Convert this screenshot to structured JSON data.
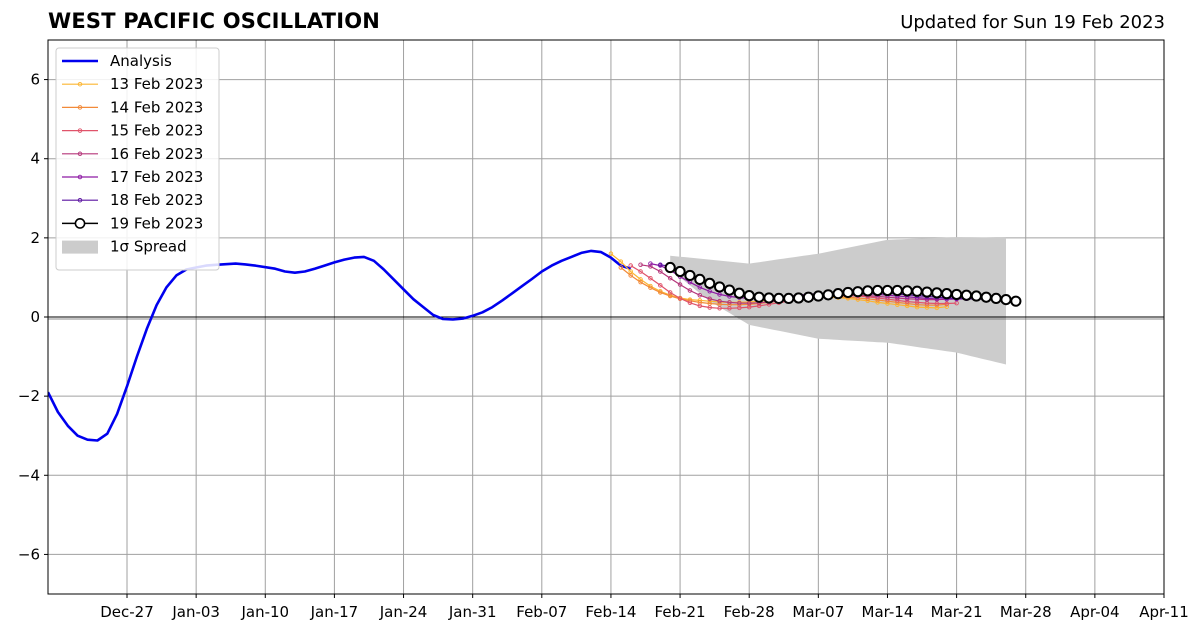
{
  "title": "WEST PACIFIC OSCILLATION",
  "subtitle": "Updated for Sun 19 Feb 2023",
  "chart_data": {
    "type": "line",
    "x_unit": "date",
    "x_range": [
      "2022-12-19",
      "2023-04-11"
    ],
    "ylim": [
      -7,
      7
    ],
    "yticks": [
      -6,
      -4,
      -2,
      0,
      2,
      4,
      6
    ],
    "ytick_labels": [
      "−6",
      "−4",
      "−2",
      "0",
      "2",
      "4",
      "6"
    ],
    "xticks": [
      "2022-12-27",
      "2023-01-03",
      "2023-01-10",
      "2023-01-17",
      "2023-01-24",
      "2023-01-31",
      "2023-02-07",
      "2023-02-14",
      "2023-02-21",
      "2023-02-28",
      "2023-03-07",
      "2023-03-14",
      "2023-03-21",
      "2023-03-28",
      "2023-04-04",
      "2023-04-11"
    ],
    "xtick_labels": [
      "Dec-27",
      "Jan-03",
      "Jan-10",
      "Jan-17",
      "Jan-24",
      "Jan-31",
      "Feb-07",
      "Feb-14",
      "Feb-21",
      "Feb-28",
      "Mar-07",
      "Mar-14",
      "Mar-21",
      "Mar-28",
      "Apr-04",
      "Apr-11"
    ],
    "grid": true,
    "legend_position": "top-left",
    "series": [
      {
        "name": "Analysis",
        "color": "#0000ee",
        "style": "thick-line",
        "x": [
          "2022-12-19",
          "2022-12-20",
          "2022-12-21",
          "2022-12-22",
          "2022-12-23",
          "2022-12-24",
          "2022-12-25",
          "2022-12-26",
          "2022-12-27",
          "2022-12-28",
          "2022-12-29",
          "2022-12-30",
          "2022-12-31",
          "2023-01-01",
          "2023-01-02",
          "2023-01-03",
          "2023-01-04",
          "2023-01-05",
          "2023-01-07",
          "2023-01-08",
          "2023-01-09",
          "2023-01-11",
          "2023-01-12",
          "2023-01-13",
          "2023-01-14",
          "2023-01-15",
          "2023-01-16",
          "2023-01-17",
          "2023-01-18",
          "2023-01-19",
          "2023-01-20",
          "2023-01-21",
          "2023-01-22",
          "2023-01-23",
          "2023-01-24",
          "2023-01-25",
          "2023-01-26",
          "2023-01-27",
          "2023-01-28",
          "2023-01-29",
          "2023-01-30",
          "2023-01-31",
          "2023-02-01",
          "2023-02-02",
          "2023-02-03",
          "2023-02-04",
          "2023-02-05",
          "2023-02-06",
          "2023-02-07",
          "2023-02-08",
          "2023-02-09",
          "2023-02-10",
          "2023-02-11",
          "2023-02-12",
          "2023-02-13",
          "2023-02-14",
          "2023-02-15",
          "2023-02-16"
        ],
        "y": [
          -1.9,
          -2.4,
          -2.75,
          -3.0,
          -3.1,
          -3.12,
          -2.95,
          -2.45,
          -1.75,
          -1.0,
          -0.3,
          0.3,
          0.75,
          1.05,
          1.2,
          1.25,
          1.3,
          1.32,
          1.35,
          1.33,
          1.3,
          1.22,
          1.15,
          1.12,
          1.15,
          1.22,
          1.3,
          1.38,
          1.45,
          1.5,
          1.52,
          1.42,
          1.2,
          0.95,
          0.7,
          0.45,
          0.25,
          0.05,
          -0.05,
          -0.06,
          -0.04,
          0.03,
          0.12,
          0.25,
          0.42,
          0.6,
          0.78,
          0.96,
          1.15,
          1.3,
          1.42,
          1.52,
          1.62,
          1.67,
          1.64,
          1.5,
          1.3,
          1.22
        ]
      },
      {
        "name": "13 Feb 2023",
        "color": "#fcb531",
        "style": "small-markers",
        "start": "2023-02-14",
        "y": [
          1.6,
          1.4,
          1.15,
          0.95,
          0.78,
          0.65,
          0.55,
          0.48,
          0.44,
          0.42,
          0.4,
          0.38,
          0.37,
          0.37,
          0.38,
          0.4,
          0.42,
          0.45,
          0.47,
          0.49,
          0.5,
          0.5,
          0.5,
          0.49,
          0.47,
          0.44,
          0.41,
          0.37,
          0.34,
          0.31,
          0.28,
          0.25,
          0.24,
          0.23,
          0.26
        ]
      },
      {
        "name": "14 Feb 2023",
        "color": "#f28a39",
        "style": "small-markers",
        "start": "2023-02-15",
        "y": [
          1.25,
          1.05,
          0.88,
          0.74,
          0.62,
          0.53,
          0.46,
          0.41,
          0.37,
          0.34,
          0.32,
          0.31,
          0.31,
          0.32,
          0.34,
          0.37,
          0.4,
          0.43,
          0.46,
          0.49,
          0.5,
          0.51,
          0.51,
          0.5,
          0.48,
          0.46,
          0.43,
          0.4,
          0.37,
          0.34,
          0.31,
          0.3,
          0.3,
          0.32
        ]
      },
      {
        "name": "15 Feb 2023",
        "color": "#e0536a",
        "style": "small-markers",
        "start": "2023-02-16",
        "y": [
          1.3,
          1.15,
          0.98,
          0.8,
          0.62,
          0.47,
          0.36,
          0.28,
          0.24,
          0.22,
          0.22,
          0.23,
          0.25,
          0.28,
          0.32,
          0.36,
          0.4,
          0.44,
          0.48,
          0.51,
          0.53,
          0.54,
          0.54,
          0.53,
          0.51,
          0.48,
          0.45,
          0.42,
          0.39,
          0.37,
          0.35,
          0.34,
          0.34,
          0.35
        ]
      },
      {
        "name": "16 Feb 2023",
        "color": "#b5367a",
        "style": "small-markers",
        "start": "2023-02-17",
        "y": [
          1.32,
          1.28,
          1.15,
          0.98,
          0.82,
          0.67,
          0.55,
          0.46,
          0.4,
          0.37,
          0.35,
          0.35,
          0.36,
          0.38,
          0.41,
          0.44,
          0.47,
          0.5,
          0.53,
          0.55,
          0.56,
          0.56,
          0.55,
          0.54,
          0.52,
          0.5,
          0.48,
          0.46,
          0.45,
          0.44,
          0.44,
          0.45,
          0.46,
          0.48
        ]
      },
      {
        "name": "17 Feb 2023",
        "color": "#8e1aa5",
        "style": "small-markers",
        "start": "2023-02-18",
        "y": [
          1.35,
          1.3,
          1.18,
          1.02,
          0.88,
          0.75,
          0.65,
          0.57,
          0.52,
          0.49,
          0.47,
          0.47,
          0.48,
          0.5,
          0.52,
          0.55,
          0.57,
          0.59,
          0.6,
          0.61,
          0.61,
          0.6,
          0.59,
          0.57,
          0.55,
          0.53,
          0.51,
          0.49,
          0.47,
          0.46,
          0.45,
          0.45,
          0.46,
          0.47
        ]
      },
      {
        "name": "18 Feb 2023",
        "color": "#5a12a0",
        "style": "small-markers",
        "start": "2023-02-19",
        "y": [
          1.32,
          1.28,
          1.18,
          1.05,
          0.93,
          0.82,
          0.72,
          0.64,
          0.58,
          0.54,
          0.51,
          0.5,
          0.5,
          0.51,
          0.52,
          0.54,
          0.56,
          0.58,
          0.6,
          0.61,
          0.62,
          0.62,
          0.61,
          0.6,
          0.58,
          0.56,
          0.54,
          0.52,
          0.5,
          0.48,
          0.47,
          0.46,
          0.45,
          0.45
        ]
      },
      {
        "name": "19 Feb 2023",
        "color": "#000000",
        "style": "large-open-markers",
        "start": "2023-02-20",
        "y": [
          1.25,
          1.15,
          1.05,
          0.95,
          0.85,
          0.76,
          0.68,
          0.6,
          0.54,
          0.5,
          0.48,
          0.47,
          0.47,
          0.48,
          0.5,
          0.53,
          0.56,
          0.59,
          0.62,
          0.64,
          0.66,
          0.67,
          0.67,
          0.67,
          0.66,
          0.65,
          0.63,
          0.61,
          0.59,
          0.57,
          0.55,
          0.53,
          0.5,
          0.47,
          0.44,
          0.4
        ]
      }
    ],
    "spread": {
      "name": "1σ Spread",
      "color": "#cccccc",
      "start": "2023-02-20",
      "end": "2023-03-26",
      "upper_at": {
        "2023-02-20": 1.55,
        "2023-02-28": 1.35,
        "2023-03-07": 1.6,
        "2023-03-14": 1.95,
        "2023-03-21": 2.02,
        "2023-03-26": 2.0
      },
      "lower_at": {
        "2023-02-20": 1.2,
        "2023-02-24": 0.4,
        "2023-02-28": -0.2,
        "2023-03-07": -0.55,
        "2023-03-14": -0.65,
        "2023-03-21": -0.9,
        "2023-03-26": -1.2
      }
    },
    "zero_line": true
  }
}
